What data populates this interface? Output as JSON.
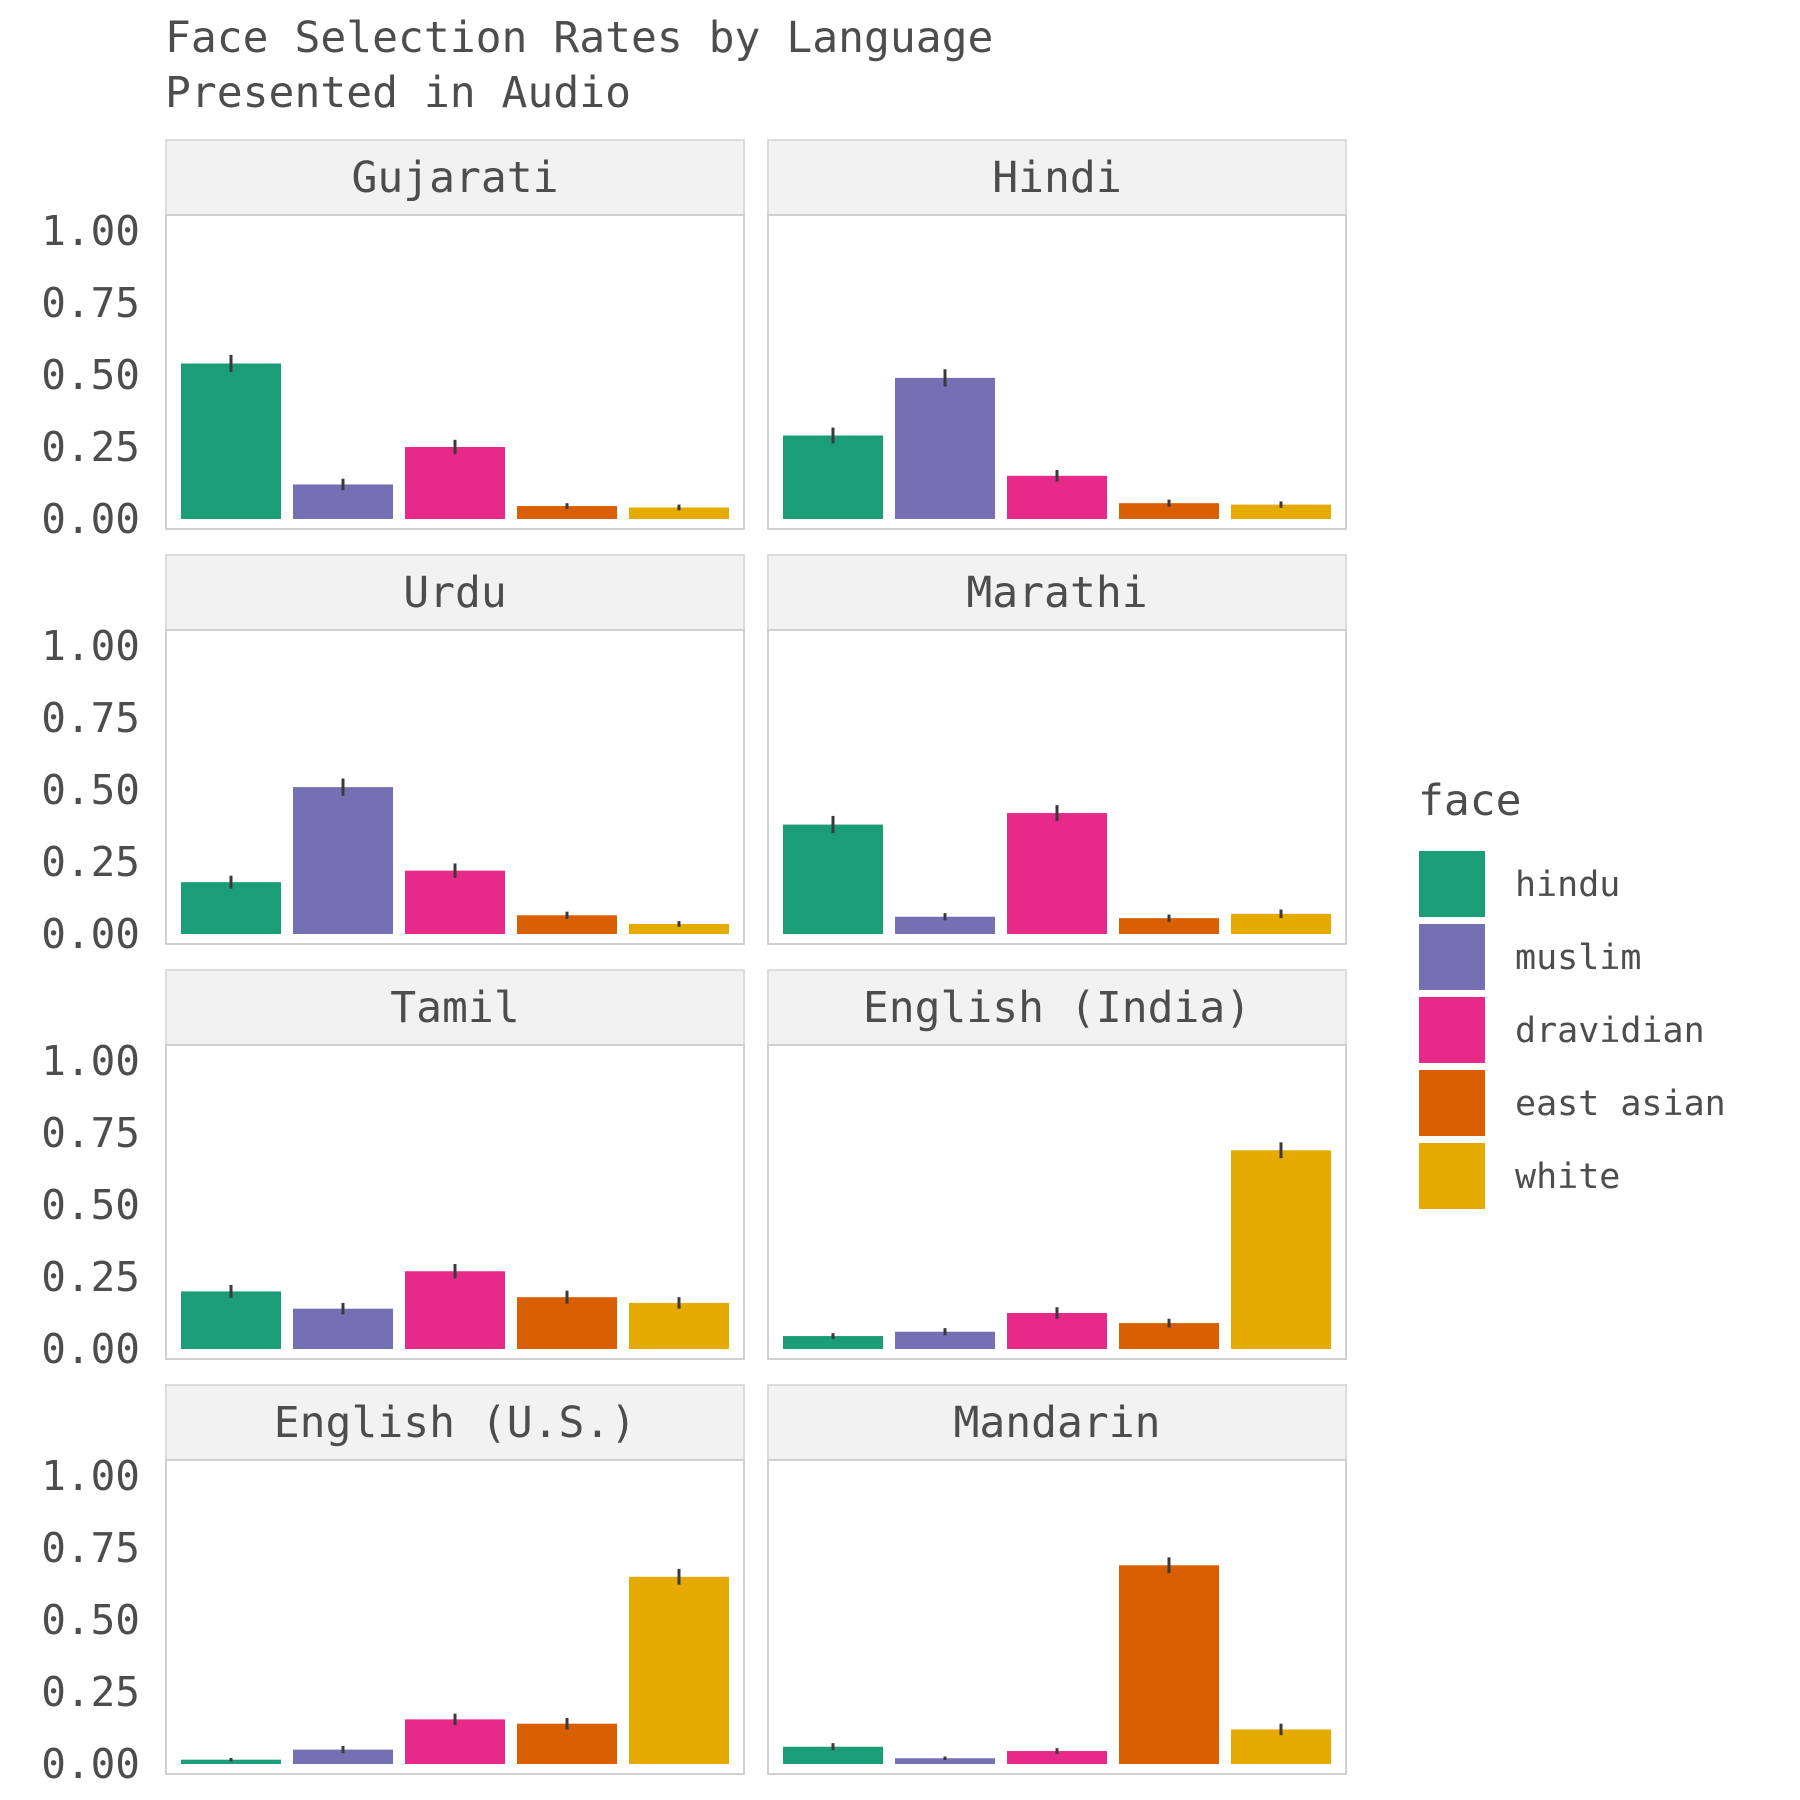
{
  "chart_data": {
    "type": "bar",
    "title": "Face Selection Rates by Language\nPresented in Audio",
    "xlabel": "",
    "ylabel": "",
    "ylim": [
      0,
      1
    ],
    "yticks": [
      "0.00",
      "0.25",
      "0.50",
      "0.75",
      "1.00"
    ],
    "grid": false,
    "legend": {
      "title": "face",
      "position": "right",
      "entries": [
        {
          "name": "hindu",
          "color": "#1b9e77"
        },
        {
          "name": "muslim",
          "color": "#7570b3"
        },
        {
          "name": "dravidian",
          "color": "#e7298a"
        },
        {
          "name": "east asian",
          "color": "#d95f02"
        },
        {
          "name": "white",
          "color": "#e6ab02"
        }
      ]
    },
    "categories": [
      "hindu",
      "muslim",
      "dravidian",
      "east asian",
      "white"
    ],
    "panels": [
      {
        "name": "Gujarati",
        "values": [
          0.54,
          0.12,
          0.25,
          0.045,
          0.04
        ],
        "errors": [
          0.06,
          0.04,
          0.05,
          0.02,
          0.02
        ]
      },
      {
        "name": "Hindi",
        "values": [
          0.29,
          0.49,
          0.15,
          0.055,
          0.05
        ],
        "errors": [
          0.055,
          0.06,
          0.04,
          0.025,
          0.022
        ]
      },
      {
        "name": "Urdu",
        "values": [
          0.18,
          0.51,
          0.22,
          0.065,
          0.035
        ],
        "errors": [
          0.045,
          0.06,
          0.05,
          0.025,
          0.02
        ]
      },
      {
        "name": "Marathi",
        "values": [
          0.38,
          0.06,
          0.42,
          0.055,
          0.07
        ],
        "errors": [
          0.06,
          0.025,
          0.055,
          0.025,
          0.03
        ]
      },
      {
        "name": "Tamil",
        "values": [
          0.2,
          0.14,
          0.27,
          0.18,
          0.16
        ],
        "errors": [
          0.045,
          0.04,
          0.05,
          0.045,
          0.04
        ]
      },
      {
        "name": "English (India)",
        "values": [
          0.045,
          0.06,
          0.125,
          0.09,
          0.69
        ],
        "errors": [
          0.02,
          0.025,
          0.04,
          0.03,
          0.055
        ]
      },
      {
        "name": "English (U.S.)",
        "values": [
          0.015,
          0.05,
          0.155,
          0.14,
          0.65
        ],
        "errors": [
          0.012,
          0.025,
          0.04,
          0.04,
          0.055
        ]
      },
      {
        "name": "Mandarin",
        "values": [
          0.06,
          0.02,
          0.045,
          0.69,
          0.12
        ],
        "errors": [
          0.025,
          0.012,
          0.02,
          0.055,
          0.04
        ]
      }
    ]
  }
}
